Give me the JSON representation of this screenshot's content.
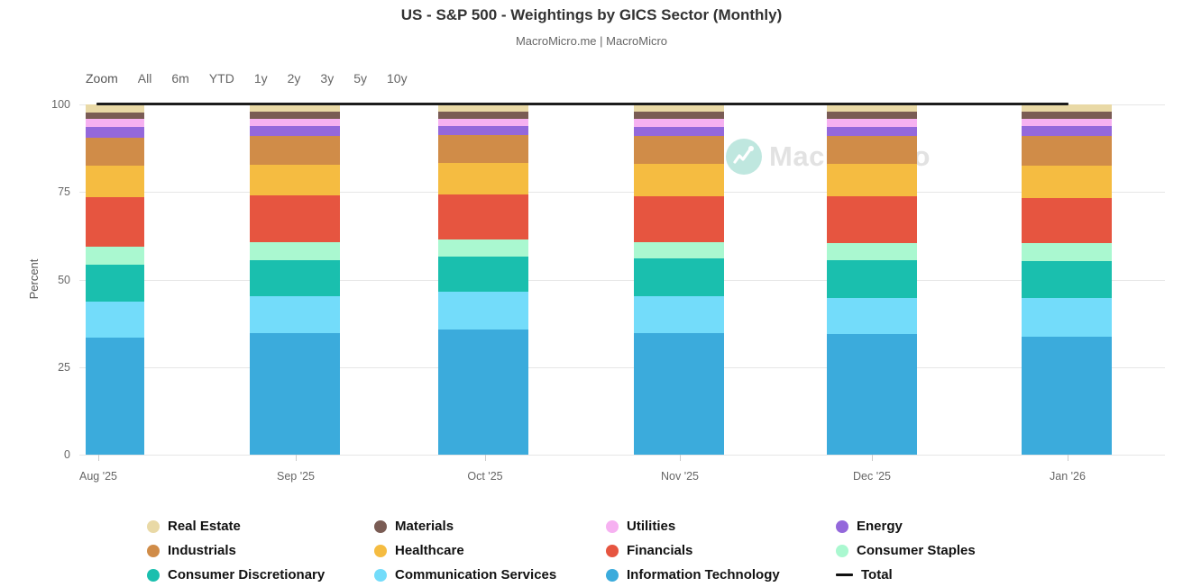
{
  "header": {
    "title": "US - S&P 500 - Weightings by GICS Sector (Monthly)",
    "subtitle": "MacroMicro.me | MacroMicro"
  },
  "toolbar": {
    "zoom_label": "Zoom",
    "ranges": [
      "All",
      "6m",
      "YTD",
      "1y",
      "2y",
      "3y",
      "5y",
      "10y"
    ]
  },
  "watermark": {
    "text": "MacroMicro",
    "logo": "macromicro-logo",
    "logo_color": "#bfe7df"
  },
  "chart_data": {
    "type": "bar",
    "stacked": true,
    "title": "US - S&P 500 - Weightings by GICS Sector (Monthly)",
    "xlabel": "",
    "ylabel": "Percent",
    "ylim": [
      0,
      100
    ],
    "yticks": [
      0,
      25,
      50,
      75,
      100
    ],
    "grid": true,
    "legend_position": "bottom",
    "categories": [
      "Aug '25",
      "Sep '25",
      "Oct '25",
      "Nov '25",
      "Dec '25",
      "Jan '26"
    ],
    "series": [
      {
        "name": "Real Estate",
        "color": "#e9d9a6",
        "values": [
          2.2,
          2.0,
          2.0,
          2.1,
          2.1,
          2.0
        ]
      },
      {
        "name": "Materials",
        "color": "#7a5c54",
        "values": [
          2.0,
          2.1,
          2.0,
          2.1,
          2.1,
          2.2
        ]
      },
      {
        "name": "Utilities",
        "color": "#f6b1f1",
        "values": [
          2.2,
          2.2,
          2.1,
          2.3,
          2.3,
          2.1
        ]
      },
      {
        "name": "Energy",
        "color": "#9468db",
        "values": [
          3.0,
          2.7,
          2.6,
          2.6,
          2.6,
          2.6
        ]
      },
      {
        "name": "Industrials",
        "color": "#d08c48",
        "values": [
          8.2,
          8.3,
          8.1,
          7.9,
          7.9,
          8.6
        ]
      },
      {
        "name": "Healthcare",
        "color": "#f5bc41",
        "values": [
          9.0,
          8.7,
          9.0,
          9.3,
          9.3,
          9.3
        ]
      },
      {
        "name": "Financials",
        "color": "#e65540",
        "values": [
          14.1,
          13.4,
          12.9,
          13.0,
          13.3,
          12.7
        ]
      },
      {
        "name": "Consumer Staples",
        "color": "#aaf8d0",
        "values": [
          5.2,
          5.0,
          4.7,
          4.8,
          5.0,
          5.3
        ]
      },
      {
        "name": "Consumer Discretionary",
        "color": "#1abfae",
        "values": [
          10.3,
          10.5,
          10.1,
          10.6,
          10.7,
          10.4
        ]
      },
      {
        "name": "Communication Services",
        "color": "#73dcfa",
        "values": [
          10.3,
          10.3,
          10.9,
          10.5,
          10.3,
          11.1
        ]
      },
      {
        "name": "Information Technology",
        "color": "#3babdc",
        "values": [
          33.5,
          34.8,
          35.6,
          34.8,
          34.4,
          33.7
        ]
      }
    ],
    "total_series": {
      "name": "Total",
      "color": "#1c1c1c",
      "values": [
        100,
        100,
        100,
        100,
        100,
        100
      ]
    }
  }
}
